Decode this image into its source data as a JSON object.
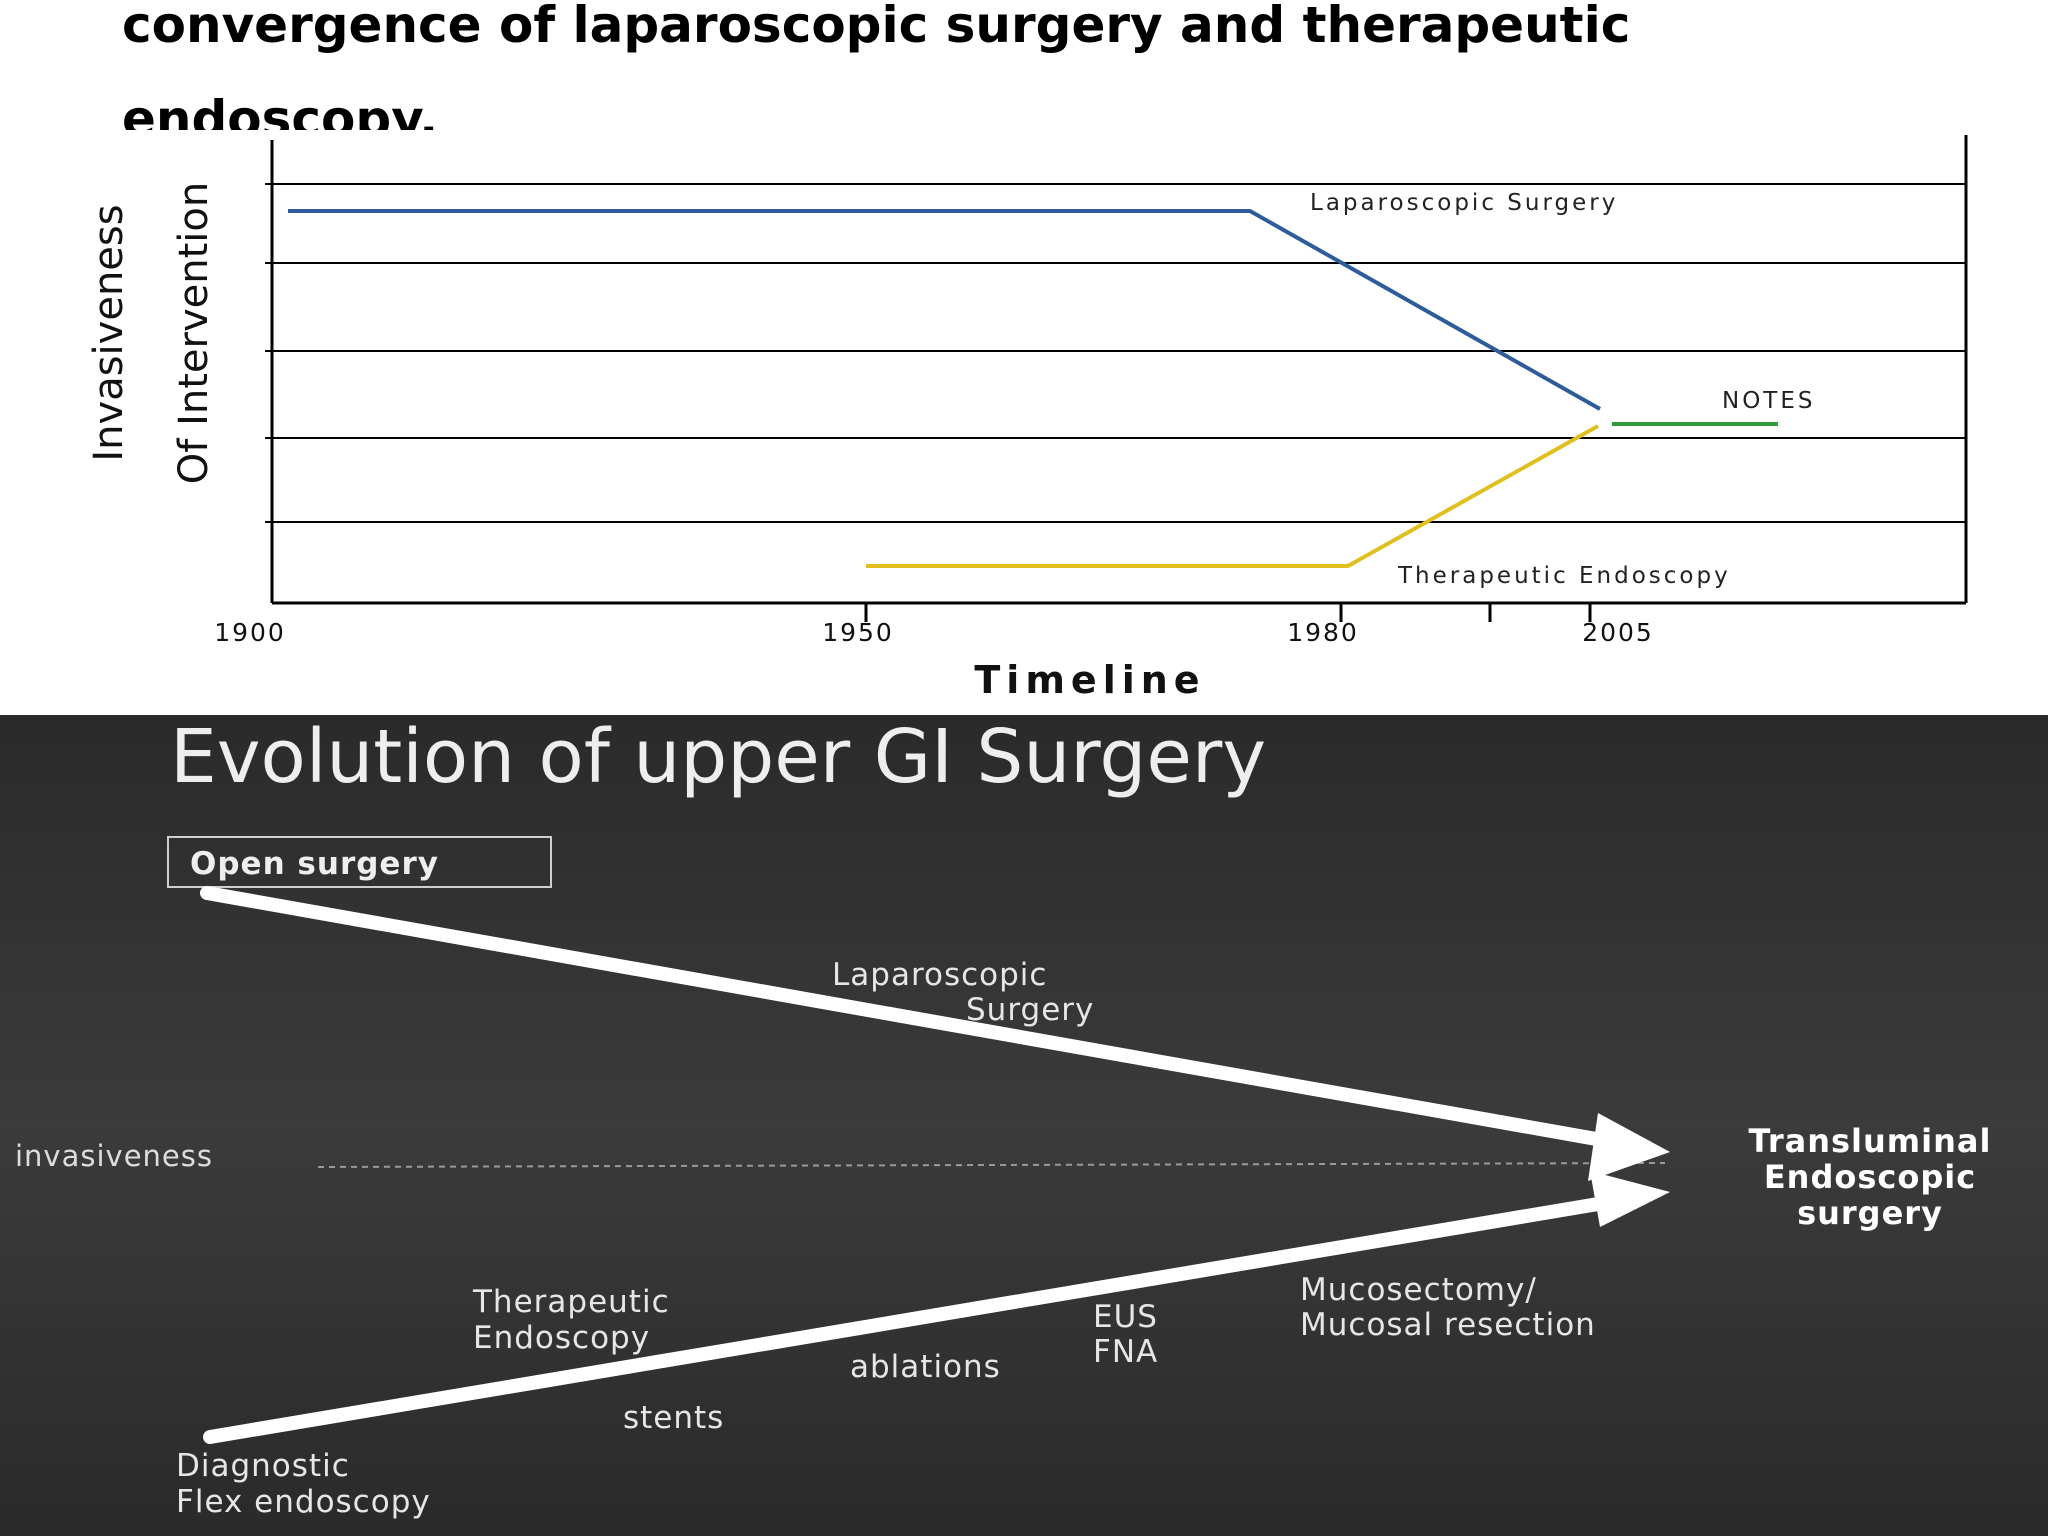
{
  "heading": "convergence of laparoscopic surgery and therapeutic endoscopy.",
  "top_chart": {
    "y_label_line1": "Invasiveness",
    "y_label_line2": "Of Intervention",
    "x_label": "Timeline",
    "x_ticks": [
      "1900",
      "1950",
      "1980",
      "2005"
    ],
    "series": [
      {
        "name": "Laparoscopic Surgery",
        "color": "#2e5c9a"
      },
      {
        "name": "NOTES",
        "color": "#2e9a3c"
      },
      {
        "name": "Therapeutic Endoscopy",
        "color": "#e0c020"
      }
    ]
  },
  "bottom_diagram": {
    "title": "Evolution of upper GI Surgery",
    "start_box": "Open surgery",
    "upper_arrow_label_line1": "Laparoscopic",
    "upper_arrow_label_line2": "Surgery",
    "midline_label": "invasiveness",
    "endpoint_line1": "Transluminal",
    "endpoint_line2": "Endoscopic",
    "endpoint_line3": "surgery",
    "lower_start_line1": "Diagnostic",
    "lower_start_line2": "Flex endoscopy",
    "ther_line1": "Therapeutic",
    "ther_line2": "Endoscopy",
    "stents": "stents",
    "ablations": "ablations",
    "eus_line1": "EUS",
    "eus_line2": "FNA",
    "muco_line1": "Mucosectomy/",
    "muco_line2": "Mucosal resection",
    "background": "#2b2b2b"
  }
}
